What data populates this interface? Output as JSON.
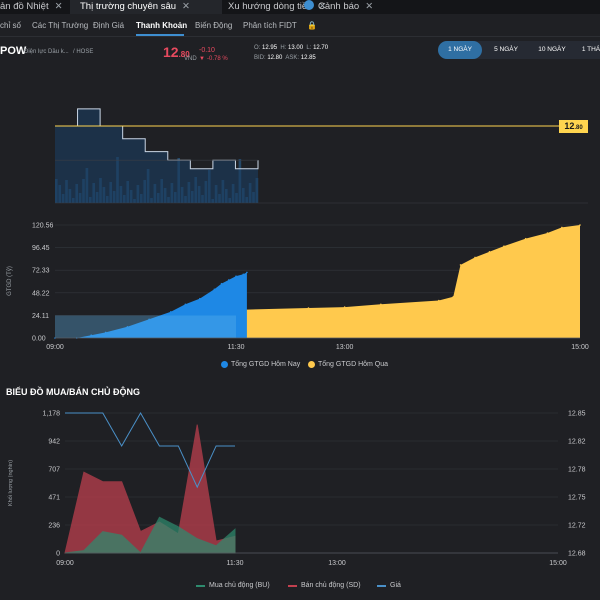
{
  "tabs": [
    {
      "label": "ản đồ Nhiệt",
      "close": "✕"
    },
    {
      "label": "Thị trường chuyên sâu",
      "close": "✕"
    },
    {
      "label": "Xu hướng dòng tiền",
      "close": "✕"
    },
    {
      "label": "Cảnh báo",
      "close": "✕"
    }
  ],
  "subnav": [
    "chỉ số",
    "Các Thị Trường",
    "Định Giá",
    "Thanh Khoản",
    "Biến Động",
    "Phân tích FIDT"
  ],
  "stock": {
    "symbol": "POW",
    "name": "Điện lực Dầu k...",
    "exchange": "/ HOSE",
    "price": "12",
    "price_dec": ".80",
    "ccy": "VND",
    "change": "-0.10",
    "pct": "-0.78 %",
    "ohl": {
      "o_label": "O:",
      "o": "12.95",
      "h_label": "H:",
      "h": "13.00",
      "l_label": "L:",
      "l": "12.70"
    },
    "bidask": {
      "bid_label": "BID:",
      "bid": "12.80",
      "ask_label": "ASK:",
      "ask": "12.85"
    }
  },
  "periods": [
    "1 NGÀY",
    "5 NGÀY",
    "10 NGÀY",
    "1 THÁ"
  ],
  "colors": {
    "today": "#1e88e5",
    "yesterday": "#ffc94d",
    "buy": "#2e8b6e",
    "sell": "#c2404f",
    "price_line": "#4a90c8"
  },
  "chart_data": [
    {
      "type": "line",
      "title": "",
      "price_tag": "12",
      "price_tag_dec": ".80",
      "reference_price": 12.8,
      "series": [
        {
          "values": [
            12.88,
            12.88,
            12.92,
            12.92,
            12.88,
            12.88,
            12.85,
            12.85,
            12.82,
            12.82,
            12.8,
            12.8,
            12.78,
            12.78,
            12.8,
            12.8,
            12.78,
            12.78,
            12.8
          ]
        }
      ]
    },
    {
      "type": "area",
      "title": "",
      "ylabel": "GTGD (Tỷ)",
      "ylim": [
        0,
        120.56
      ],
      "yticks": [
        "120.56",
        "96.45",
        "72.33",
        "48.22",
        "24.11",
        "0.00"
      ],
      "xticks": [
        "09:00",
        "11:30",
        "13:00",
        "15:00"
      ],
      "series": [
        {
          "name": "Tổng GTGD Hôm Nay",
          "points": [
            [
              0,
              0
            ],
            [
              0.3,
              0
            ],
            [
              0.5,
              3
            ],
            [
              0.7,
              6
            ],
            [
              1.0,
              12
            ],
            [
              1.3,
              20
            ],
            [
              1.6,
              28
            ],
            [
              1.8,
              36
            ],
            [
              2.0,
              42
            ],
            [
              2.2,
              52
            ],
            [
              2.3,
              58
            ],
            [
              2.4,
              62
            ],
            [
              2.5,
              66
            ],
            [
              2.6,
              68
            ],
            [
              2.65,
              70
            ]
          ]
        },
        {
          "name": "Tổng GTGD Hôm Qua",
          "points": [
            [
              2.5,
              30
            ],
            [
              3.5,
              32
            ],
            [
              4.0,
              33
            ],
            [
              4.5,
              36
            ],
            [
              5.3,
              40
            ],
            [
              5.5,
              44
            ],
            [
              5.6,
              78
            ],
            [
              5.8,
              86
            ],
            [
              6.0,
              92
            ],
            [
              6.2,
              98
            ],
            [
              6.5,
              106
            ],
            [
              6.8,
              112
            ],
            [
              7.0,
              118
            ],
            [
              7.25,
              120.56
            ]
          ]
        }
      ]
    },
    {
      "type": "area",
      "title": "BIỂU ĐỒ MUA/BÁN CHỦ ĐỘNG",
      "ylabel": "Khối lượng (nghìn)",
      "ylim": [
        0,
        1178
      ],
      "yticks": [
        "1,178",
        "942",
        "707",
        "471",
        "236",
        "0"
      ],
      "y2ticks": [
        "12.85",
        "12.82",
        "12.78",
        "12.75",
        "12.72",
        "12.68"
      ],
      "y2lim": [
        12.68,
        12.85
      ],
      "xticks": [
        "09:00",
        "11:30",
        "13:00",
        "15:00"
      ],
      "series": [
        {
          "name": "Mua chủ động (BU)",
          "values": [
            0,
            20,
            180,
            150,
            0,
            300,
            220,
            120,
            60,
            200
          ]
        },
        {
          "name": "Bán chủ động (SD)",
          "values": [
            0,
            680,
            600,
            600,
            180,
            260,
            160,
            1080,
            100,
            140
          ]
        },
        {
          "name": "Giá",
          "values": [
            12.85,
            12.85,
            12.85,
            12.81,
            12.85,
            12.81,
            12.81,
            12.76,
            12.81,
            12.81
          ]
        }
      ]
    }
  ]
}
